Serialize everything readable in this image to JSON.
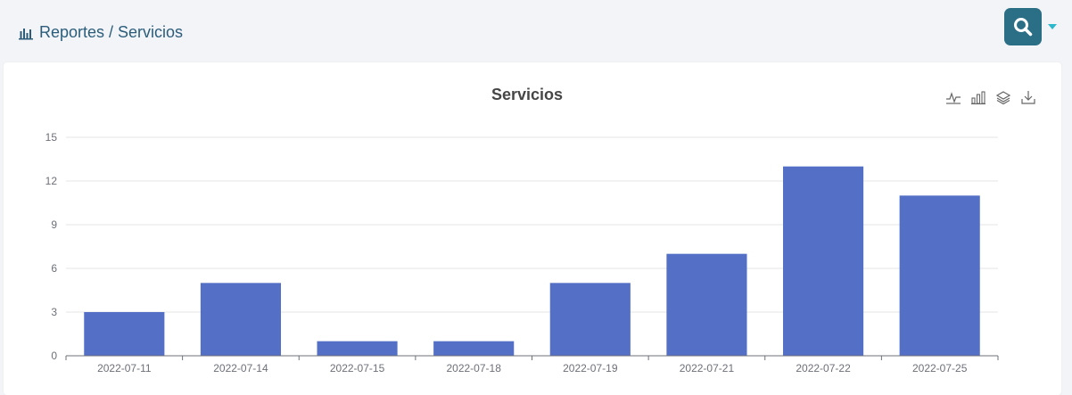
{
  "breadcrumb": {
    "icon": "bar-chart-icon",
    "text": "Reportes / Servicios"
  },
  "search": {
    "icon": "search-icon"
  },
  "toolbox": [
    "line-chart-icon",
    "bar-chart-icon",
    "stack-icon",
    "download-icon"
  ],
  "colors": {
    "bar": "#5470c6",
    "breadcrumb": "#2b5d7b",
    "search_bg": "#2b6f86",
    "caret": "#2bb7cc"
  },
  "chart_data": {
    "type": "bar",
    "title": "Servicios",
    "categories": [
      "2022-07-11",
      "2022-07-14",
      "2022-07-15",
      "2022-07-18",
      "2022-07-19",
      "2022-07-21",
      "2022-07-22",
      "2022-07-25"
    ],
    "values": [
      3,
      5,
      1,
      1,
      5,
      7,
      13,
      11
    ],
    "yticks": [
      0,
      3,
      6,
      9,
      12,
      15
    ],
    "ylim": [
      0,
      15
    ],
    "xlabel": "",
    "ylabel": "",
    "grid": true,
    "legend": "none"
  }
}
